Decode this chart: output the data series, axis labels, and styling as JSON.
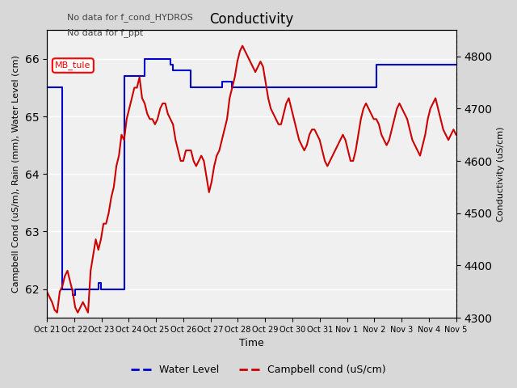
{
  "title": "Conductivity",
  "xlabel": "Time",
  "ylabel_left": "Campbell Cond (uS/m), Rain (mm), Water Level (cm)",
  "ylabel_right": "Conductivity (uS/cm)",
  "ylim_left": [
    61.5,
    66.5
  ],
  "ylim_right": [
    4300,
    4850
  ],
  "annotations": [
    "No data for f_cond_HYDROS",
    "No data for f_ppt"
  ],
  "mb_tule_label": "MB_tule",
  "xtick_labels": [
    "Oct 21",
    "Oct 22",
    "Oct 23",
    "Oct 24",
    "Oct 25",
    "Oct 26",
    "Oct 27",
    "Oct 28",
    "Oct 29",
    "Oct 30",
    "Oct 31",
    "Nov 1",
    "Nov 2",
    "Nov 3",
    "Nov 4",
    "Nov 5"
  ],
  "legend_entries": [
    "Water Level",
    "Campbell cond (uS/cm)"
  ],
  "legend_colors": [
    "#0000cc",
    "#cc0000"
  ],
  "bg_color": "#e8e8e8",
  "plot_bg_color": "#f0f0f0",
  "grid_color": "#ffffff",
  "water_level_color": "#0000cc",
  "campbell_cond_color": "#cc0000",
  "water_level_data": [
    65.5,
    65.5,
    65.5,
    65.5,
    65.5,
    65.5,
    62.0,
    62.0,
    62.0,
    62.0,
    61.9,
    62.0,
    62.0,
    62.0,
    62.0,
    62.0,
    62.0,
    62.0,
    62.0,
    62.0,
    62.1,
    62.0,
    62.0,
    62.0,
    62.0,
    62.0,
    62.0,
    62.0,
    62.0,
    62.0,
    65.7,
    65.7,
    65.7,
    65.7,
    65.7,
    65.7,
    65.7,
    65.7,
    66.0,
    66.0,
    66.0,
    66.0,
    66.0,
    66.0,
    66.0,
    66.0,
    66.0,
    66.0,
    65.9,
    65.8,
    65.8,
    65.8,
    65.8,
    65.8,
    65.8,
    65.8,
    65.5,
    65.5,
    65.5,
    65.5,
    65.5,
    65.5,
    65.5,
    65.5,
    65.5,
    65.5,
    65.5,
    65.5,
    65.6,
    65.6,
    65.6,
    65.6,
    65.5,
    65.5,
    65.5,
    65.5,
    65.5,
    65.5,
    65.5,
    65.5,
    65.5,
    65.5,
    65.5,
    65.5,
    65.5,
    65.5,
    65.5,
    65.5,
    65.5,
    65.5,
    65.5,
    65.5,
    65.5,
    65.5,
    65.5,
    65.5,
    65.5,
    65.5,
    65.5,
    65.5,
    65.5,
    65.5,
    65.5,
    65.5,
    65.5,
    65.5,
    65.5,
    65.5,
    65.5,
    65.5,
    65.5,
    65.5,
    65.5,
    65.5,
    65.5,
    65.5,
    65.5,
    65.5,
    65.5,
    65.5,
    65.5,
    65.5,
    65.5,
    65.5,
    65.5,
    65.5,
    65.5,
    65.5,
    65.9,
    65.9,
    65.9,
    65.9,
    65.9,
    65.9,
    65.9,
    65.9,
    65.9,
    65.9,
    65.9,
    65.9,
    65.9,
    65.9,
    65.9,
    65.9,
    65.9,
    65.9,
    65.9,
    65.9,
    65.9,
    65.9,
    65.9,
    65.9,
    65.9,
    65.9,
    65.9,
    65.9,
    65.9,
    65.9,
    65.9,
    65.9
  ],
  "campbell_cond_data": [
    4350,
    4340,
    4330,
    4315,
    4310,
    4350,
    4360,
    4380,
    4390,
    4370,
    4350,
    4320,
    4310,
    4320,
    4330,
    4320,
    4310,
    4390,
    4420,
    4450,
    4430,
    4450,
    4480,
    4480,
    4500,
    4530,
    4550,
    4590,
    4610,
    4650,
    4640,
    4680,
    4700,
    4720,
    4740,
    4740,
    4760,
    4720,
    4710,
    4690,
    4680,
    4680,
    4670,
    4680,
    4700,
    4710,
    4710,
    4690,
    4680,
    4670,
    4640,
    4620,
    4600,
    4600,
    4620,
    4620,
    4620,
    4600,
    4590,
    4600,
    4610,
    4600,
    4570,
    4540,
    4560,
    4590,
    4610,
    4620,
    4640,
    4660,
    4680,
    4720,
    4740,
    4760,
    4790,
    4810,
    4820,
    4810,
    4800,
    4790,
    4780,
    4770,
    4780,
    4790,
    4780,
    4750,
    4720,
    4700,
    4690,
    4680,
    4670,
    4670,
    4690,
    4710,
    4720,
    4700,
    4680,
    4660,
    4640,
    4630,
    4620,
    4630,
    4650,
    4660,
    4660,
    4650,
    4640,
    4620,
    4600,
    4590,
    4600,
    4610,
    4620,
    4630,
    4640,
    4650,
    4640,
    4620,
    4600,
    4600,
    4620,
    4650,
    4680,
    4700,
    4710,
    4700,
    4690,
    4680,
    4680,
    4670,
    4650,
    4640,
    4630,
    4640,
    4660,
    4680,
    4700,
    4710,
    4700,
    4690,
    4680,
    4660,
    4640,
    4630,
    4620,
    4610,
    4630,
    4650,
    4680,
    4700,
    4710,
    4720,
    4700,
    4680,
    4660,
    4650,
    4640,
    4650,
    4660,
    4650
  ]
}
